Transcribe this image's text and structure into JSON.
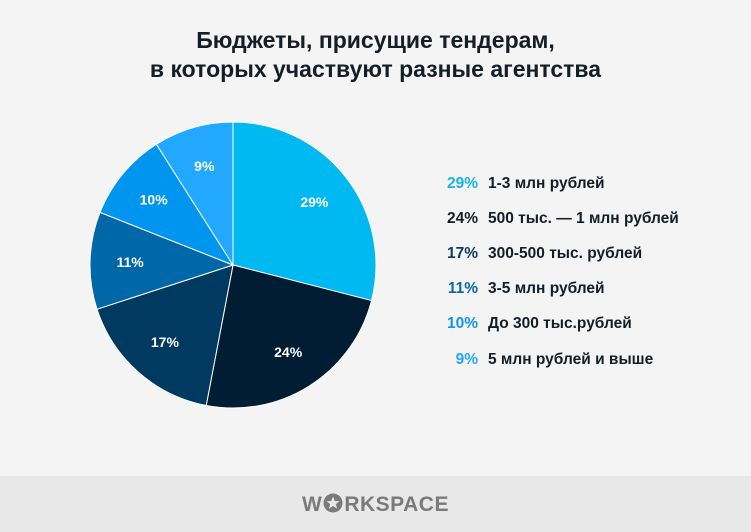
{
  "title_line1": "Бюджеты, присущие тендерам,",
  "title_line2": "в которых участвуют разные агентства",
  "chart_data": {
    "type": "pie",
    "title": "Бюджеты, присущие тендерам, в которых участвуют разные агентства",
    "categories": [
      "1-3 млн рублей",
      "500 тыс. — 1 млн рублей",
      "300-500 тыс. рублей",
      "3-5 млн рублей",
      "До 300 тыс.рублей",
      "5 млн рублей и выше"
    ],
    "values": [
      29,
      24,
      17,
      11,
      10,
      9
    ],
    "labels": [
      "29%",
      "24%",
      "17%",
      "11%",
      "10%",
      "9%"
    ],
    "colors": [
      "#00b9f1",
      "#001d33",
      "#003a61",
      "#0068a8",
      "#0095ef",
      "#23a8ff"
    ],
    "legend_pct_colors": [
      "#17b2ea",
      "#151d26",
      "#0d3a5e",
      "#0a66a8",
      "#1095ec",
      "#22a6fb"
    ],
    "legend_position": "right"
  },
  "legend": [
    {
      "pct": "29%",
      "label": "1-3 млн рублей"
    },
    {
      "pct": "24%",
      "label": "500 тыс. — 1 млн рублей"
    },
    {
      "pct": "17%",
      "label": "300-500 тыс. рублей"
    },
    {
      "pct": "11%",
      "label": "3-5 млн рублей"
    },
    {
      "pct": "10%",
      "label": "До 300 тыс.рублей"
    },
    {
      "pct": "9%",
      "label": "5 млн рублей и выше"
    }
  ],
  "footer": {
    "logo_left": "W",
    "logo_right": "RKSPACE"
  }
}
